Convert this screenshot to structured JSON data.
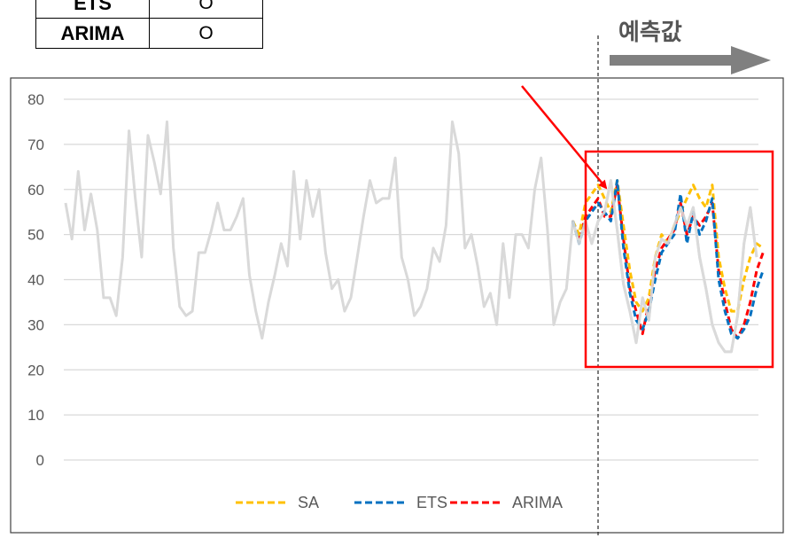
{
  "table": {
    "rows": [
      {
        "name": "ETS",
        "mark": "O"
      },
      {
        "name": "ARIMA",
        "mark": "O"
      }
    ]
  },
  "forecast_label": "예측값",
  "colors": {
    "history": "#d9d9d9",
    "SA": "#ffc000",
    "ETS": "#0070c0",
    "ARIMA": "#ff0000",
    "highlight": "#ff0000",
    "arrow": "#808080",
    "grid": "#d9d9d9",
    "axis_text": "#595959"
  },
  "chart_data": {
    "type": "line",
    "title": "",
    "xlabel": "",
    "ylabel": "",
    "ylim": [
      0,
      80
    ],
    "yticks": [
      0,
      10,
      20,
      30,
      40,
      50,
      60,
      70,
      80
    ],
    "grid": true,
    "legend_position": "bottom",
    "history_series": {
      "x_start": 0,
      "values": [
        57,
        49,
        64,
        51,
        59,
        51,
        36,
        36,
        32,
        45,
        73,
        58,
        45,
        72,
        66,
        59,
        75,
        47,
        34,
        32,
        33,
        46,
        46,
        51,
        57,
        51,
        51,
        54,
        58,
        41,
        33,
        27,
        35,
        41,
        48,
        43,
        64,
        49,
        62,
        54,
        60,
        46,
        38,
        40,
        33,
        36,
        45,
        54,
        62,
        57,
        58,
        58,
        67,
        45,
        40,
        32,
        34,
        38,
        47,
        44,
        52,
        75,
        68,
        47,
        50,
        43,
        34,
        37,
        30,
        48,
        36,
        50,
        50,
        47,
        60,
        67,
        51,
        30,
        35,
        38,
        53,
        48,
        53,
        48,
        53,
        55,
        62,
        51,
        39,
        33,
        26,
        36,
        31,
        45,
        49,
        48,
        52,
        56,
        52,
        56,
        45,
        38,
        30,
        26,
        24,
        24,
        32,
        48,
        56,
        45
      ]
    },
    "forecast_x_start": 80,
    "series": [
      {
        "name": "SA",
        "x_start": 81,
        "values": [
          50,
          57,
          59,
          61,
          58,
          55,
          62,
          52,
          42,
          35,
          33,
          36,
          45,
          50,
          48,
          52,
          55,
          58,
          61,
          58,
          56,
          61,
          45,
          38,
          33,
          33,
          40,
          45,
          48,
          47
        ]
      },
      {
        "name": "ETS",
        "x_start": 81,
        "values": [
          48,
          53,
          55,
          57,
          55,
          53,
          62,
          47,
          37,
          31,
          29,
          33,
          40,
          46,
          48,
          50,
          59,
          48,
          55,
          50,
          53,
          58,
          40,
          33,
          28,
          27,
          29,
          32,
          38,
          42
        ]
      },
      {
        "name": "ARIMA",
        "x_start": 81,
        "values": [
          49,
          54,
          56,
          58,
          54,
          54,
          61,
          49,
          38,
          33,
          28,
          35,
          42,
          47,
          49,
          51,
          57,
          50,
          54,
          52,
          54,
          57,
          42,
          35,
          29,
          27,
          30,
          35,
          42,
          46
        ]
      }
    ]
  }
}
